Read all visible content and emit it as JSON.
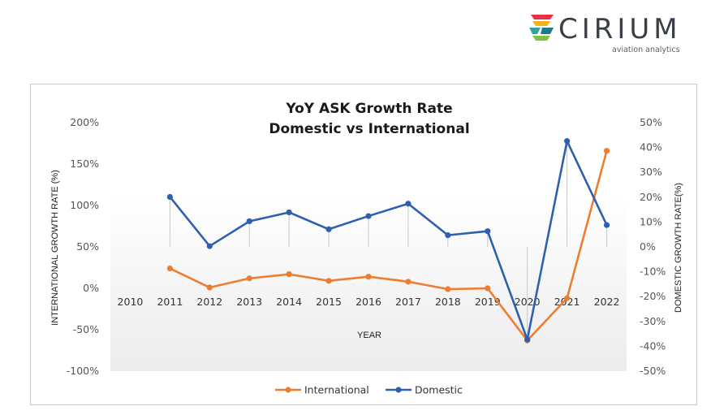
{
  "logo": {
    "name": "CIRIUM",
    "tagline": "aviation analytics"
  },
  "chart_data": {
    "type": "line",
    "title": [
      "YoY ASK Growth Rate",
      "Domestic vs International"
    ],
    "xlabel": "YEAR",
    "ylabel_left": "INTERNATIONAL GROWTH RATE (%)",
    "ylabel_right": "DOMESTIC GROWTH RATE(%)",
    "categories": [
      "2010",
      "2011",
      "2012",
      "2013",
      "2014",
      "2015",
      "2016",
      "2017",
      "2018",
      "2019",
      "2020",
      "2021",
      "2022"
    ],
    "y_left": {
      "lim": [
        -100,
        200
      ],
      "step": 50,
      "ticks": [
        "-100%",
        "-50%",
        "0%",
        "50%",
        "100%",
        "150%",
        "200%"
      ]
    },
    "y_right": {
      "lim": [
        -50,
        50
      ],
      "step": 10,
      "ticks": [
        "-50%",
        "-40%",
        "-30%",
        "-20%",
        "-10%",
        "0%",
        "10%",
        "20%",
        "30%",
        "40%",
        "50%"
      ]
    },
    "series": [
      {
        "name": "International",
        "axis": "left",
        "color": "#ED7D31",
        "values": [
          null,
          24,
          1,
          12,
          17,
          9,
          14,
          8,
          -1,
          0,
          -63,
          -12,
          166
        ]
      },
      {
        "name": "Domestic",
        "axis": "right",
        "color": "#2E60AF",
        "values": [
          null,
          20.1,
          0.3,
          10.3,
          13.9,
          7.1,
          12.4,
          17.4,
          4.7,
          6.3,
          -37.3,
          42.6,
          8.8
        ]
      }
    ],
    "grid": false,
    "legend": "bottom",
    "background_gradient": true
  }
}
